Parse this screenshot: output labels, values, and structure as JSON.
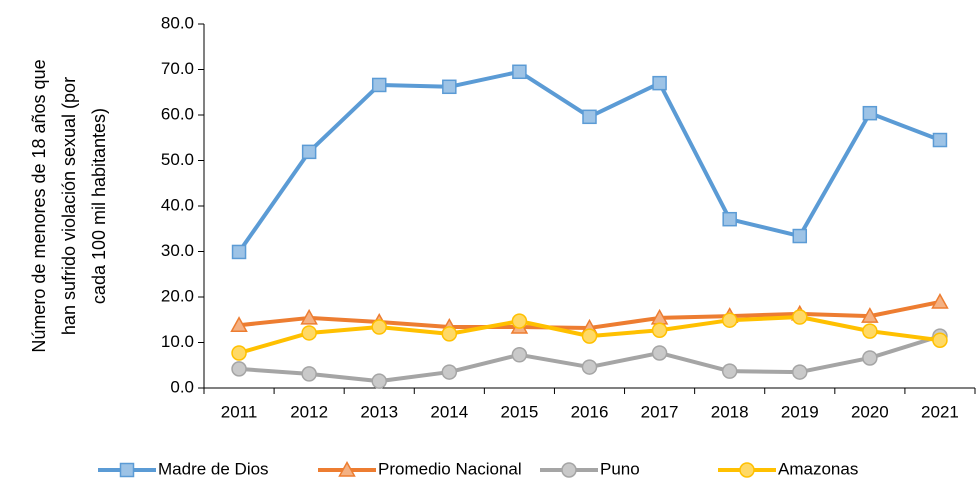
{
  "chart_data": {
    "type": "line",
    "ylabel": [
      "Número de menores de 18 años que",
      "han sufrido violación sexual (por",
      "cada 100 mil habitantes)"
    ],
    "categories": [
      "2011",
      "2012",
      "2013",
      "2014",
      "2015",
      "2016",
      "2017",
      "2018",
      "2019",
      "2020",
      "2021"
    ],
    "ylim": [
      0,
      80
    ],
    "yticks": [
      {
        "value": 0,
        "label": "0.0"
      },
      {
        "value": 10,
        "label": "10.0"
      },
      {
        "value": 20,
        "label": "20.0"
      },
      {
        "value": 30,
        "label": "30.0"
      },
      {
        "value": 40,
        "label": "40.0"
      },
      {
        "value": 50,
        "label": "50.0"
      },
      {
        "value": 60,
        "label": "60.0"
      },
      {
        "value": 70,
        "label": "70.0"
      },
      {
        "value": 80,
        "label": "80.0"
      }
    ],
    "grid": false,
    "legend": "bottom",
    "series": [
      {
        "name": "Madre de Dios",
        "color": "#5b9bd5",
        "marker": "square",
        "marker_fill": "#9dc3e6",
        "values": [
          29.9,
          51.9,
          66.6,
          66.2,
          69.5,
          59.6,
          67.0,
          37.1,
          33.4,
          60.4,
          54.5
        ]
      },
      {
        "name": "Promedio Nacional",
        "color": "#ed7d31",
        "marker": "triangle",
        "marker_fill": "#f4b183",
        "values": [
          13.8,
          15.4,
          14.5,
          13.4,
          13.4,
          13.2,
          15.4,
          15.8,
          16.3,
          15.8,
          18.9
        ]
      },
      {
        "name": "Puno",
        "color": "#a5a5a5",
        "marker": "circle",
        "marker_fill": "#c9c9c9",
        "values": [
          4.2,
          3.1,
          1.5,
          3.5,
          7.3,
          4.6,
          7.7,
          3.7,
          3.5,
          6.6,
          11.4
        ]
      },
      {
        "name": "Amazonas",
        "color": "#ffc000",
        "marker": "circle",
        "marker_fill": "#ffd966",
        "values": [
          7.7,
          12.1,
          13.4,
          11.9,
          14.7,
          11.4,
          12.7,
          14.9,
          15.6,
          12.5,
          10.5
        ]
      }
    ]
  }
}
